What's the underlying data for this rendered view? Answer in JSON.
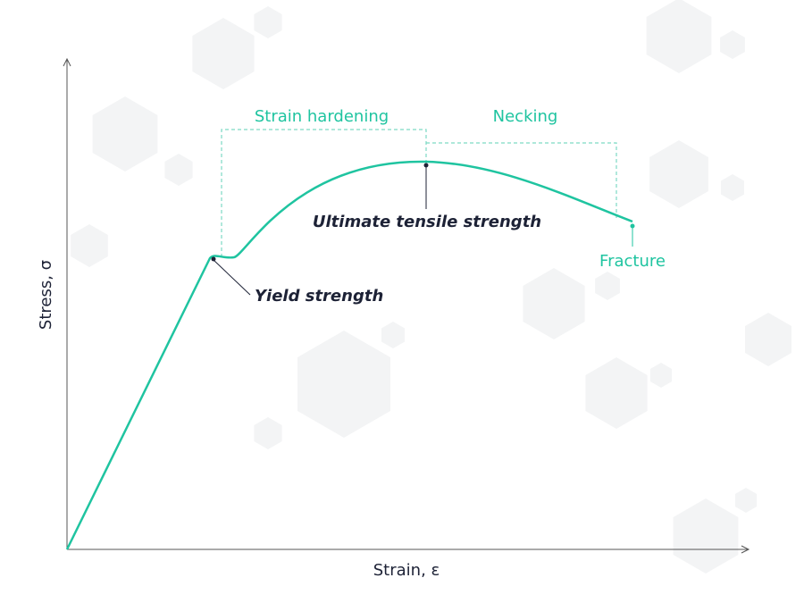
{
  "axes": {
    "y_label": "Stress, σ",
    "x_label": "Strain, ε"
  },
  "regions": {
    "strain_hardening": "Strain hardening",
    "necking": "Necking"
  },
  "points": {
    "yield": "Yield strength",
    "ultimate": "Ultimate tensile strength",
    "fracture": "Fracture"
  }
}
